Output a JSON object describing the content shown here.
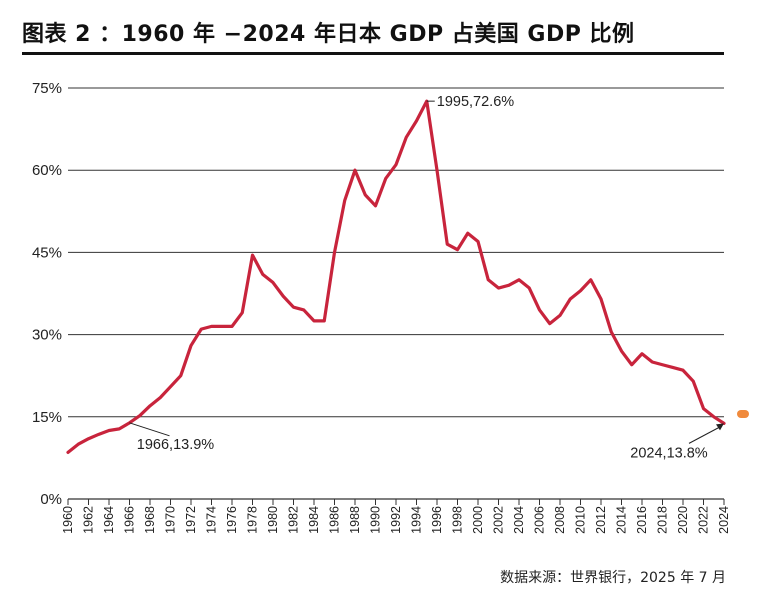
{
  "header": {
    "title": "图表 2 ：1960 年 −2024 年日本 GDP 占美国 GDP 比例"
  },
  "footer": {
    "source": "数据来源：世界银行，2025 年 7 月"
  },
  "colors": {
    "line": "#c8243c",
    "grid": "#333333",
    "accent_dot": "#f08a3c"
  },
  "chart_data": {
    "type": "line",
    "title": "1960 年 −2024 年日本 GDP 占美国 GDP 比例",
    "xlabel": "",
    "ylabel": "",
    "ylim": [
      0,
      75
    ],
    "xlim": [
      1960,
      2024
    ],
    "grid": true,
    "yticks": [
      0,
      15,
      30,
      45,
      60,
      75
    ],
    "ytick_labels": [
      "0%",
      "15%",
      "30%",
      "45%",
      "60%",
      "75%"
    ],
    "xticks": [
      1960,
      1962,
      1964,
      1966,
      1968,
      1970,
      1972,
      1974,
      1976,
      1978,
      1980,
      1982,
      1984,
      1986,
      1988,
      1990,
      1992,
      1994,
      1996,
      1998,
      2000,
      2002,
      2004,
      2006,
      2008,
      2010,
      2012,
      2014,
      2016,
      2018,
      2020,
      2022,
      2024
    ],
    "series": [
      {
        "name": "日本 GDP 占美国 GDP 比例",
        "x": [
          1960,
          1961,
          1962,
          1963,
          1964,
          1965,
          1966,
          1967,
          1968,
          1969,
          1970,
          1971,
          1972,
          1973,
          1974,
          1975,
          1976,
          1977,
          1978,
          1979,
          1980,
          1981,
          1982,
          1983,
          1984,
          1985,
          1986,
          1987,
          1988,
          1989,
          1990,
          1991,
          1992,
          1993,
          1994,
          1995,
          1996,
          1997,
          1998,
          1999,
          2000,
          2001,
          2002,
          2003,
          2004,
          2005,
          2006,
          2007,
          2008,
          2009,
          2010,
          2011,
          2012,
          2013,
          2014,
          2015,
          2016,
          2017,
          2018,
          2019,
          2020,
          2021,
          2022,
          2023,
          2024
        ],
        "values": [
          8.5,
          10.0,
          11.0,
          11.8,
          12.5,
          12.8,
          13.9,
          15.2,
          17.0,
          18.5,
          20.5,
          22.5,
          28.0,
          31.0,
          31.5,
          31.5,
          31.5,
          34.0,
          44.5,
          41.0,
          39.5,
          37.0,
          35.0,
          34.5,
          32.5,
          32.5,
          45.0,
          54.5,
          60.0,
          55.5,
          53.5,
          58.5,
          61.0,
          66.0,
          69.0,
          72.6,
          60.0,
          46.5,
          45.5,
          48.5,
          47.0,
          40.0,
          38.5,
          39.0,
          40.0,
          38.5,
          34.5,
          32.0,
          33.5,
          36.5,
          38.0,
          40.0,
          36.5,
          30.5,
          27.0,
          24.5,
          26.5,
          25.0,
          24.5,
          24.0,
          23.5,
          21.5,
          16.5,
          15.0,
          13.8
        ]
      }
    ],
    "annotations": [
      {
        "label": "1995,72.6%",
        "x": 1995,
        "y": 72.6
      },
      {
        "label": "1966,13.9%",
        "x": 1966,
        "y": 13.9
      },
      {
        "label": "2024,13.8%",
        "x": 2024,
        "y": 13.8
      }
    ]
  }
}
